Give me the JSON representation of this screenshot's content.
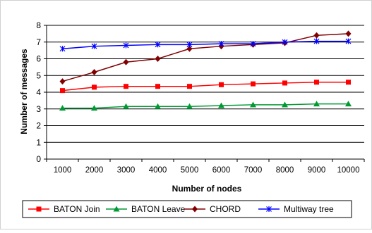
{
  "chart_data": {
    "type": "line",
    "title": "",
    "xlabel": "Number of nodes",
    "ylabel": "Number of messages",
    "x": [
      1000,
      2000,
      3000,
      4000,
      5000,
      6000,
      7000,
      8000,
      9000,
      10000
    ],
    "x_tick_labels": [
      "1000",
      "2000",
      "3000",
      "4000",
      "5000",
      "6000",
      "7000",
      "8000",
      "9000",
      "10000"
    ],
    "ylim": [
      0,
      8
    ],
    "y_ticks": [
      0,
      1,
      2,
      3,
      4,
      5,
      6,
      7,
      8
    ],
    "grid": "horizontal",
    "legend_position": "bottom",
    "series": [
      {
        "name": "BATON Join",
        "color": "#ff0000",
        "marker": "square",
        "values": [
          4.1,
          4.3,
          4.35,
          4.35,
          4.35,
          4.45,
          4.5,
          4.55,
          4.6,
          4.6
        ]
      },
      {
        "name": "BATON Leave",
        "color": "#009933",
        "marker": "triangle",
        "values": [
          3.05,
          3.05,
          3.15,
          3.15,
          3.15,
          3.2,
          3.25,
          3.25,
          3.3,
          3.3
        ]
      },
      {
        "name": "CHORD",
        "color": "#800000",
        "marker": "diamond",
        "values": [
          4.65,
          5.2,
          5.8,
          6.0,
          6.6,
          6.75,
          6.85,
          6.95,
          7.4,
          7.5
        ]
      },
      {
        "name": "Multiway tree",
        "color": "#0000ff",
        "marker": "star",
        "values": [
          6.6,
          6.75,
          6.8,
          6.85,
          6.85,
          6.9,
          6.9,
          7.0,
          7.05,
          7.05
        ]
      }
    ]
  }
}
